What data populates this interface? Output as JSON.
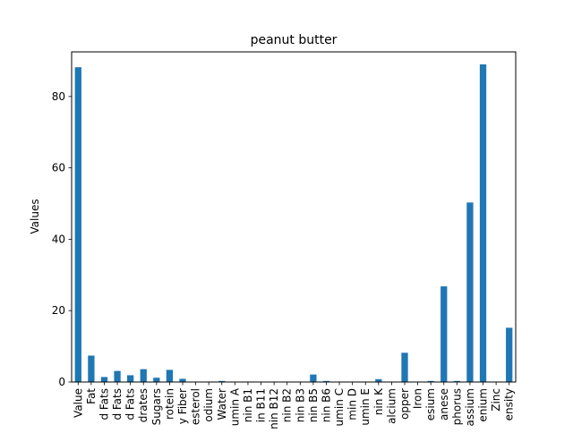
{
  "chart_data": {
    "type": "bar",
    "title": "peanut butter",
    "xlabel": "",
    "ylabel": "Values",
    "ylim": [
      0,
      92.5
    ],
    "yticks": [
      0,
      20,
      40,
      60,
      80
    ],
    "grid": false,
    "legend": "none",
    "bar_color": "#1f77b4",
    "categories": [
      "Value",
      "Fat",
      "d Fats",
      "d Fats",
      "d Fats",
      "drates",
      "Sugars",
      "rotein",
      "y Fiber",
      "esterol",
      "odium",
      "Water",
      "umin A",
      "nin B1",
      "in B11",
      "nin B12",
      "nin B2",
      "nin B3",
      "nin B5",
      "nin B6",
      "umin C",
      "min D",
      "umin E",
      "nin K",
      "alcium",
      "opper",
      "Iron",
      "esium",
      "anese",
      "phorus",
      "assium",
      "enium",
      "Zinc",
      "ensity"
    ],
    "values": [
      88.2,
      7.4,
      1.4,
      3.1,
      1.9,
      3.6,
      1.2,
      3.4,
      0.9,
      0,
      0,
      0.3,
      0,
      0,
      0,
      0,
      0,
      0,
      2.1,
      0.3,
      0,
      0,
      0,
      0.8,
      0,
      8.2,
      0,
      0.3,
      26.8,
      0.3,
      50.3,
      89.0,
      0,
      15.2
    ]
  }
}
